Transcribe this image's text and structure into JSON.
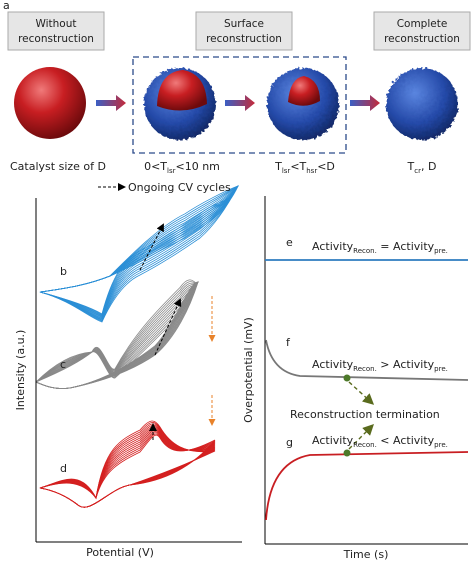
{
  "panel_label": "a",
  "stages": [
    {
      "title_lines": [
        "Without",
        "reconstruction"
      ]
    },
    {
      "title_lines": [
        "Surface",
        "reconstruction"
      ]
    },
    {
      "title_lines": [
        "Complete",
        "reconstruction"
      ]
    }
  ],
  "captions": [
    {
      "parts": [
        "Catalyst size of D"
      ]
    },
    {
      "parts": [
        "0<T",
        "lsr",
        "<10 nm"
      ]
    },
    {
      "parts": [
        "T",
        "lsr",
        "<T",
        "hsr",
        "<D"
      ]
    },
    {
      "parts": [
        "T",
        "cr",
        ", D"
      ]
    }
  ],
  "cv_plot": {
    "legend": "Ongoing CV cycles",
    "curve_labels": [
      "b",
      "c",
      "d"
    ],
    "y_label": "Intensity (a.u.)",
    "x_label": "Potential (V)"
  },
  "time_plot": {
    "curve_labels": [
      "e",
      "f",
      "g"
    ],
    "y_label": "Overpotential (mV)",
    "x_label": "Time (s)",
    "annotations": [
      {
        "parts": [
          "Activity",
          "Recon.",
          " = Activity",
          "pre."
        ]
      },
      {
        "parts": [
          "Activity",
          "Recon.",
          " > Activity",
          "pre."
        ]
      },
      {
        "parts": [
          "Activity",
          "Recon.",
          " < Activity",
          "pre."
        ]
      }
    ],
    "termination": "Reconstruction termination"
  }
}
